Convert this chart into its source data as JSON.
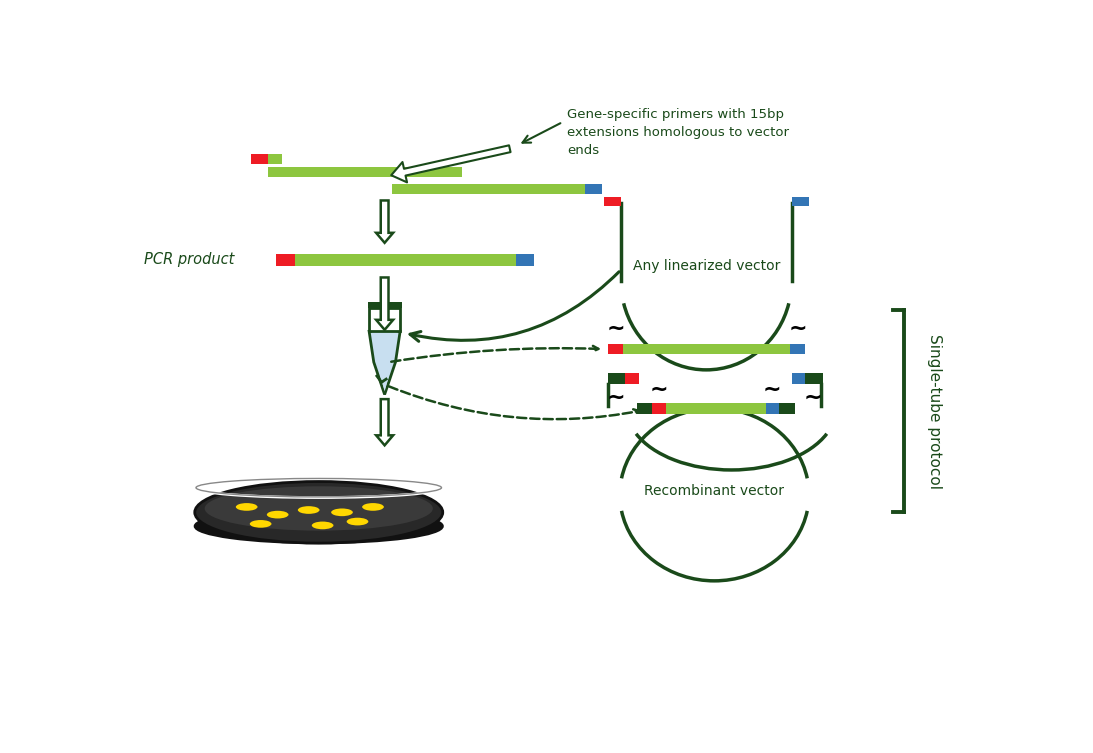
{
  "bg": "#ffffff",
  "dg": "#1a4a1a",
  "lg": "#8dc63f",
  "red": "#ee1c24",
  "blue": "#3375b5",
  "lt_blue": "#c8dff0",
  "yellow": "#ffd700",
  "label_pcr": "PCR product",
  "label_linear": "Any linearized vector",
  "label_recomb": "Recombinant vector",
  "label_single": "Single-tube protocol",
  "primer_note": "Gene-specific primers with 15bp\nextensions homologous to vector\nends",
  "fig_w": 10.93,
  "fig_h": 7.53
}
